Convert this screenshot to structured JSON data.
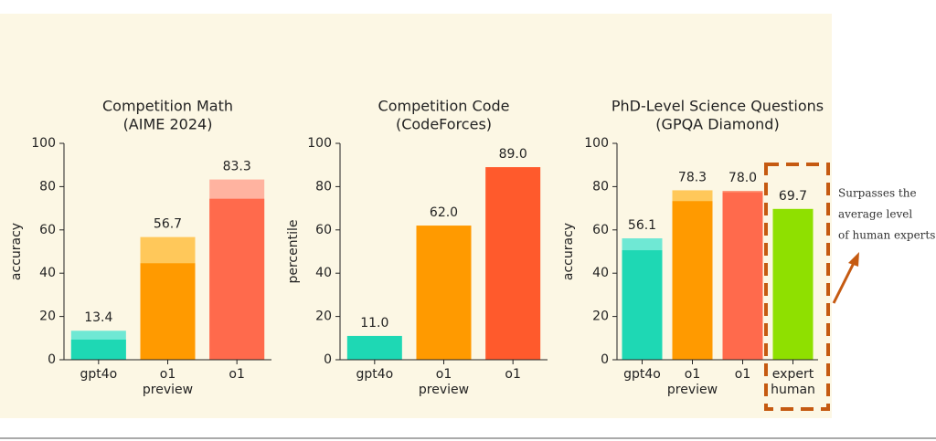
{
  "chart_data": [
    {
      "type": "bar",
      "title": "Competition Math",
      "subtitle": "(AIME 2024)",
      "ylabel": "accuracy",
      "categories": [
        "gpt4o",
        "o1 preview",
        "o1"
      ],
      "series": [
        {
          "colors": [
            "#6fe8d4",
            "#ffc85a",
            "#ffb3a0"
          ],
          "values": [
            13.4,
            56.7,
            83.3
          ]
        },
        {
          "colors": [
            "#1ed8b4",
            "#ff9a00",
            "#ff6a4c"
          ],
          "values": [
            9.3,
            44.6,
            74.4
          ]
        }
      ],
      "ylim": [
        0,
        100
      ],
      "yticks": [
        0,
        20,
        40,
        60,
        80,
        100
      ]
    },
    {
      "type": "bar",
      "title": "Competition Code",
      "subtitle": "(CodeForces)",
      "ylabel": "percentile",
      "categories": [
        "gpt4o",
        "o1 preview",
        "o1"
      ],
      "series": [
        {
          "colors": [
            "#1ed8b4",
            "#ff9a00",
            "#ff5a2c"
          ],
          "values": [
            11.0,
            62.0,
            89.0
          ],
          "value_labels": [
            "11.0",
            "62.0",
            "89.0"
          ]
        }
      ],
      "ylim": [
        0,
        100
      ],
      "yticks": [
        0,
        20,
        40,
        60,
        80,
        100
      ]
    },
    {
      "type": "bar",
      "title": "PhD-Level Science Questions",
      "subtitle": "(GPQA Diamond)",
      "ylabel": "accuracy",
      "categories": [
        "gpt4o",
        "o1 preview",
        "o1",
        "expert human"
      ],
      "series": [
        {
          "colors": [
            "#6fe8d4",
            "#ffc85a",
            "#ff8a6a",
            "#8fe000"
          ],
          "values": [
            56.1,
            78.3,
            78.0,
            69.7
          ],
          "value_labels": [
            "56.1",
            "78.3",
            "78.0",
            "69.7"
          ]
        },
        {
          "colors": [
            "#1ed8b4",
            "#ff9a00",
            "#ff6a4c",
            "#8fe000"
          ],
          "values": [
            50.6,
            73.3,
            77.3,
            null
          ]
        }
      ],
      "ylim": [
        0,
        100
      ],
      "yticks": [
        0,
        20,
        40,
        60,
        80,
        100
      ]
    }
  ],
  "annotation": {
    "lines": [
      "Surpasses the",
      "average level",
      "of human experts"
    ]
  }
}
